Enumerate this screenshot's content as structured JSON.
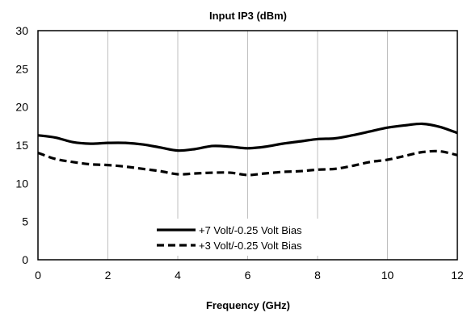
{
  "chart_data": {
    "type": "line",
    "title": "Input IP3 (dBm)",
    "xlabel": "Frequency (GHz)",
    "ylabel": "",
    "xlim": [
      0,
      12
    ],
    "ylim": [
      0,
      30
    ],
    "xticks": [
      0,
      2,
      4,
      6,
      8,
      10,
      12
    ],
    "yticks": [
      0,
      5,
      10,
      15,
      20,
      25,
      30
    ],
    "grid": {
      "vertical": true,
      "horizontal": false
    },
    "legend_position": "bottom-center",
    "series": [
      {
        "name": "+7 Volt/-0.25 Volt Bias",
        "style": "solid",
        "color": "#000000",
        "x": [
          0,
          0.5,
          1,
          1.5,
          2,
          2.5,
          3,
          3.5,
          4,
          4.5,
          5,
          5.5,
          6,
          6.5,
          7,
          7.5,
          8,
          8.5,
          9,
          9.5,
          10,
          10.5,
          11,
          11.5,
          12
        ],
        "y": [
          16.3,
          16.0,
          15.4,
          15.2,
          15.3,
          15.3,
          15.1,
          14.7,
          14.3,
          14.5,
          14.9,
          14.8,
          14.6,
          14.8,
          15.2,
          15.5,
          15.8,
          15.9,
          16.3,
          16.8,
          17.3,
          17.6,
          17.8,
          17.4,
          16.6
        ]
      },
      {
        "name": "+3 Volt/-0.25 Volt Bias",
        "style": "dashed",
        "color": "#000000",
        "x": [
          0,
          0.5,
          1,
          1.5,
          2,
          2.5,
          3,
          3.5,
          4,
          4.5,
          5,
          5.5,
          6,
          6.5,
          7,
          7.5,
          8,
          8.5,
          9,
          9.5,
          10,
          10.5,
          11,
          11.5,
          12
        ],
        "y": [
          14.0,
          13.2,
          12.8,
          12.5,
          12.4,
          12.2,
          11.9,
          11.6,
          11.2,
          11.3,
          11.4,
          11.4,
          11.1,
          11.3,
          11.5,
          11.6,
          11.8,
          11.9,
          12.3,
          12.8,
          13.1,
          13.6,
          14.1,
          14.2,
          13.7
        ]
      }
    ]
  }
}
